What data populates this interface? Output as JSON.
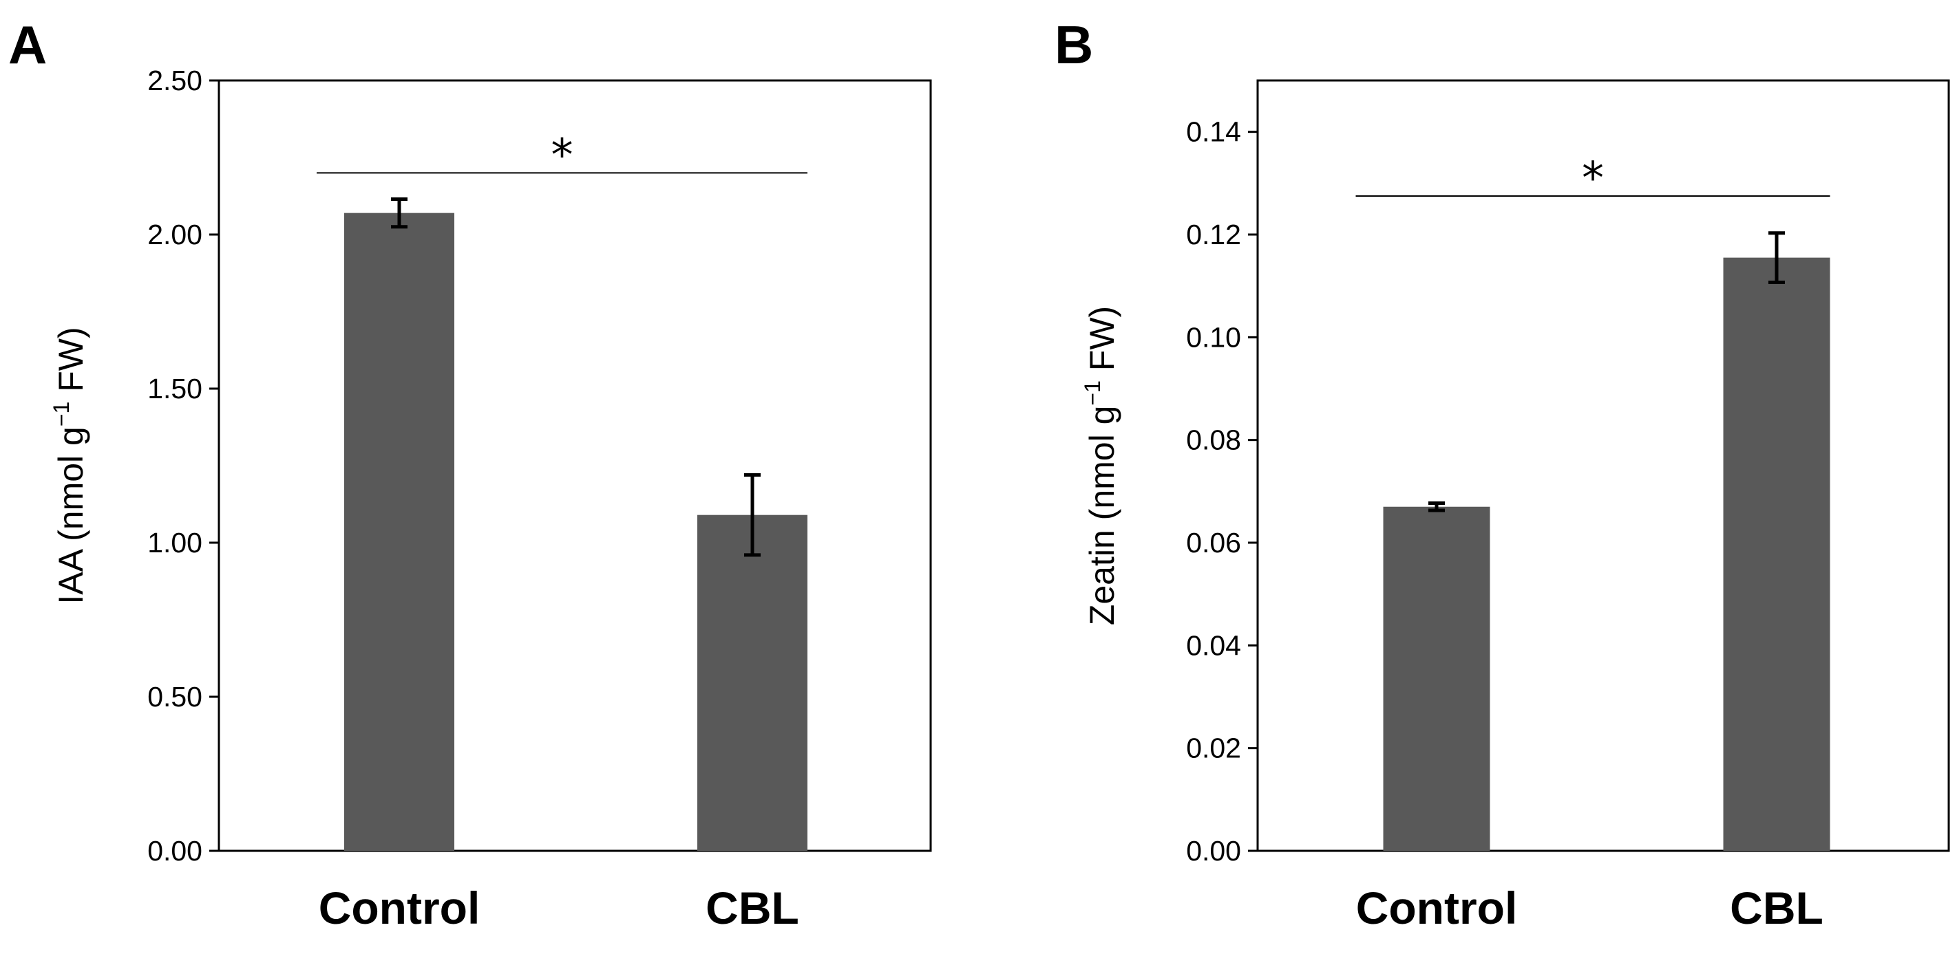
{
  "chart_data": [
    {
      "panel": "A",
      "type": "bar",
      "categories": [
        "Control",
        "CBL"
      ],
      "values": [
        2.07,
        1.09
      ],
      "errors": [
        0.045,
        0.13
      ],
      "ylabel": "IAA (nmol g",
      "ylabel_sup": "−1",
      "ylabel_tail": " FW)",
      "xlabel": "",
      "ylim": [
        0,
        2.5
      ],
      "yticks": [
        "0.00",
        "0.50",
        "1.00",
        "1.50",
        "2.00",
        "2.50"
      ],
      "ytick_values": [
        0,
        0.5,
        1.0,
        1.5,
        2.0,
        2.5
      ],
      "significance": {
        "marker": "*",
        "line_y": 2.2,
        "from": 0,
        "to": 1
      },
      "bar_color": "#595959",
      "grid": false
    },
    {
      "panel": "B",
      "type": "bar",
      "categories": [
        "Control",
        "CBL"
      ],
      "values": [
        0.067,
        0.1155
      ],
      "errors": [
        0.0007,
        0.0048
      ],
      "ylabel": "Zeatin (nmol g",
      "ylabel_sup": "−1",
      "ylabel_tail": " FW)",
      "xlabel": "",
      "ylim": [
        0,
        0.15
      ],
      "yticks": [
        "0.00",
        "0.02",
        "0.04",
        "0.06",
        "0.08",
        "0.10",
        "0.12",
        "0.14"
      ],
      "ytick_values": [
        0,
        0.02,
        0.04,
        0.06,
        0.08,
        0.1,
        0.12,
        0.14
      ],
      "significance": {
        "marker": "*",
        "line_y": 0.1275,
        "from": 0,
        "to": 1
      },
      "bar_color": "#595959",
      "grid": false
    }
  ]
}
